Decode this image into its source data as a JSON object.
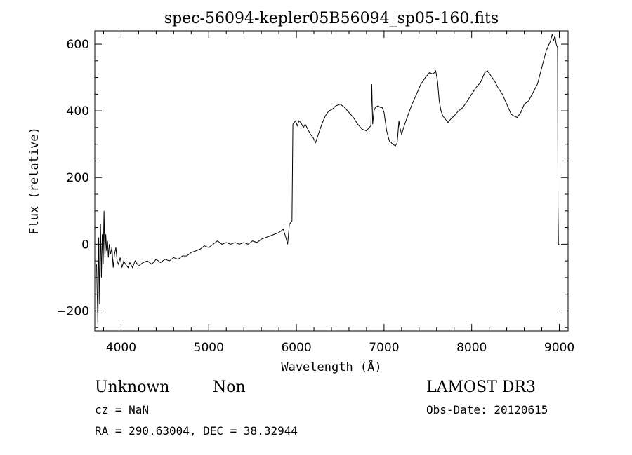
{
  "chart_data": {
    "type": "line",
    "title": "spec-56094-kepler05B56094_sp05-160.fits",
    "xlabel": "Wavelength (Å)",
    "ylabel": "Flux (relative)",
    "xlim": [
      3700,
      9100
    ],
    "ylim": [
      -260,
      640
    ],
    "xticks": [
      4000,
      5000,
      6000,
      7000,
      8000,
      9000
    ],
    "yticks": [
      -200,
      0,
      200,
      400,
      600
    ],
    "series": [
      {
        "values": [
          [
            3720,
            -60
          ],
          [
            3735,
            -240
          ],
          [
            3745,
            20
          ],
          [
            3755,
            -180
          ],
          [
            3765,
            60
          ],
          [
            3775,
            -100
          ],
          [
            3785,
            30
          ],
          [
            3795,
            -60
          ],
          [
            3805,
            100
          ],
          [
            3815,
            -40
          ],
          [
            3825,
            30
          ],
          [
            3835,
            -20
          ],
          [
            3845,
            10
          ],
          [
            3855,
            -40
          ],
          [
            3865,
            0
          ],
          [
            3880,
            -30
          ],
          [
            3895,
            -10
          ],
          [
            3910,
            -70
          ],
          [
            3925,
            -30
          ],
          [
            3940,
            -10
          ],
          [
            3955,
            -50
          ],
          [
            3970,
            -60
          ],
          [
            3990,
            -40
          ],
          [
            4010,
            -70
          ],
          [
            4030,
            -50
          ],
          [
            4050,
            -60
          ],
          [
            4080,
            -70
          ],
          [
            4100,
            -55
          ],
          [
            4130,
            -70
          ],
          [
            4160,
            -50
          ],
          [
            4200,
            -65
          ],
          [
            4250,
            -55
          ],
          [
            4300,
            -50
          ],
          [
            4350,
            -60
          ],
          [
            4400,
            -45
          ],
          [
            4450,
            -55
          ],
          [
            4500,
            -45
          ],
          [
            4550,
            -50
          ],
          [
            4600,
            -40
          ],
          [
            4650,
            -45
          ],
          [
            4700,
            -35
          ],
          [
            4750,
            -35
          ],
          [
            4800,
            -25
          ],
          [
            4850,
            -20
          ],
          [
            4900,
            -15
          ],
          [
            4950,
            -5
          ],
          [
            5000,
            -10
          ],
          [
            5050,
            0
          ],
          [
            5100,
            10
          ],
          [
            5150,
            0
          ],
          [
            5200,
            5
          ],
          [
            5250,
            0
          ],
          [
            5300,
            5
          ],
          [
            5350,
            0
          ],
          [
            5400,
            5
          ],
          [
            5450,
            0
          ],
          [
            5500,
            10
          ],
          [
            5550,
            5
          ],
          [
            5600,
            15
          ],
          [
            5650,
            20
          ],
          [
            5700,
            25
          ],
          [
            5750,
            30
          ],
          [
            5800,
            35
          ],
          [
            5850,
            45
          ],
          [
            5880,
            20
          ],
          [
            5900,
            0
          ],
          [
            5920,
            60
          ],
          [
            5950,
            70
          ],
          [
            5960,
            360
          ],
          [
            5975,
            365
          ],
          [
            5990,
            370
          ],
          [
            6010,
            355
          ],
          [
            6030,
            370
          ],
          [
            6050,
            365
          ],
          [
            6080,
            350
          ],
          [
            6100,
            360
          ],
          [
            6130,
            345
          ],
          [
            6160,
            330
          ],
          [
            6190,
            320
          ],
          [
            6220,
            305
          ],
          [
            6250,
            330
          ],
          [
            6290,
            360
          ],
          [
            6330,
            385
          ],
          [
            6370,
            400
          ],
          [
            6410,
            405
          ],
          [
            6450,
            415
          ],
          [
            6500,
            420
          ],
          [
            6550,
            410
          ],
          [
            6600,
            395
          ],
          [
            6650,
            380
          ],
          [
            6700,
            360
          ],
          [
            6750,
            345
          ],
          [
            6800,
            340
          ],
          [
            6830,
            350
          ],
          [
            6850,
            355
          ],
          [
            6860,
            480
          ],
          [
            6870,
            360
          ],
          [
            6885,
            400
          ],
          [
            6900,
            410
          ],
          [
            6930,
            415
          ],
          [
            6960,
            410
          ],
          [
            6980,
            410
          ],
          [
            7000,
            395
          ],
          [
            7030,
            340
          ],
          [
            7060,
            310
          ],
          [
            7100,
            300
          ],
          [
            7130,
            295
          ],
          [
            7150,
            305
          ],
          [
            7170,
            370
          ],
          [
            7180,
            350
          ],
          [
            7200,
            330
          ],
          [
            7230,
            355
          ],
          [
            7270,
            385
          ],
          [
            7320,
            420
          ],
          [
            7370,
            450
          ],
          [
            7420,
            480
          ],
          [
            7470,
            500
          ],
          [
            7520,
            515
          ],
          [
            7560,
            510
          ],
          [
            7590,
            520
          ],
          [
            7610,
            490
          ],
          [
            7630,
            430
          ],
          [
            7650,
            400
          ],
          [
            7670,
            385
          ],
          [
            7700,
            375
          ],
          [
            7730,
            365
          ],
          [
            7760,
            375
          ],
          [
            7800,
            385
          ],
          [
            7850,
            400
          ],
          [
            7900,
            410
          ],
          [
            7950,
            430
          ],
          [
            8000,
            450
          ],
          [
            8050,
            470
          ],
          [
            8100,
            485
          ],
          [
            8150,
            515
          ],
          [
            8180,
            520
          ],
          [
            8220,
            505
          ],
          [
            8260,
            490
          ],
          [
            8300,
            470
          ],
          [
            8350,
            450
          ],
          [
            8400,
            420
          ],
          [
            8450,
            390
          ],
          [
            8480,
            385
          ],
          [
            8520,
            380
          ],
          [
            8560,
            395
          ],
          [
            8600,
            420
          ],
          [
            8650,
            430
          ],
          [
            8700,
            455
          ],
          [
            8750,
            480
          ],
          [
            8800,
            530
          ],
          [
            8850,
            580
          ],
          [
            8900,
            610
          ],
          [
            8920,
            630
          ],
          [
            8935,
            610
          ],
          [
            8950,
            625
          ],
          [
            8965,
            600
          ],
          [
            8980,
            590
          ],
          [
            8985,
            120
          ],
          [
            8990,
            0
          ],
          [
            9000,
            0
          ]
        ]
      }
    ]
  },
  "footer": {
    "object_class": "Unknown",
    "object_subclass": "Non",
    "survey": "LAMOST DR3",
    "cz": "cz = NaN",
    "obs_date": "Obs-Date: 20120615",
    "coords": "RA = 290.63004, DEC =  38.32944"
  }
}
